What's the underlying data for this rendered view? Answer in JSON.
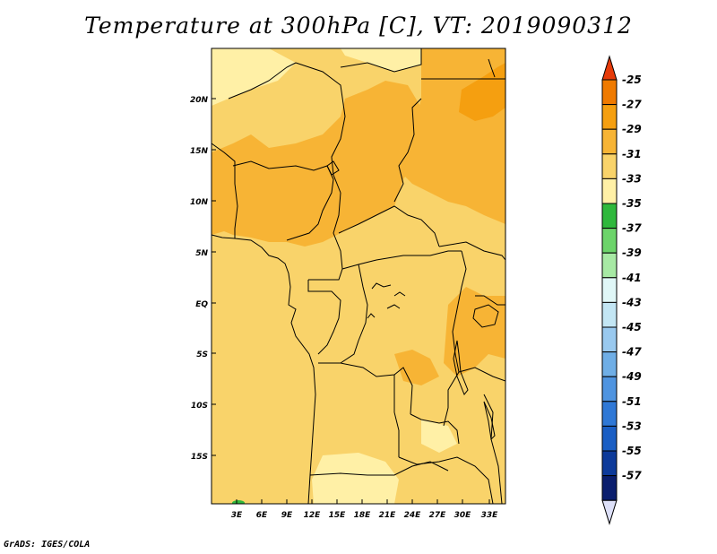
{
  "title": "Temperature at 300hPa [C], VT: 2019090312",
  "footer": "GrADS: IGES/COLA",
  "map": {
    "lat_ticks": [
      "20N",
      "15N",
      "10N",
      "5N",
      "EQ",
      "5S",
      "10S",
      "15S"
    ],
    "lon_ticks": [
      "3E",
      "6E",
      "9E",
      "12E",
      "15E",
      "18E",
      "21E",
      "24E",
      "27E",
      "30E",
      "33E"
    ]
  },
  "colorbar": {
    "labels": [
      "-25",
      "-27",
      "-29",
      "-31",
      "-33",
      "-35",
      "-37",
      "-39",
      "-41",
      "-43",
      "-45",
      "-47",
      "-49",
      "-51",
      "-53",
      "-55",
      "-57"
    ],
    "colors": [
      "#e64a0a",
      "#ef7a00",
      "#f59f10",
      "#f7b435",
      "#f9d36a",
      "#fff0a6",
      "#2fb83c",
      "#6cd46a",
      "#a7e9a4",
      "#e0f7f7",
      "#c3e6f4",
      "#99c9ef",
      "#6faee6",
      "#4f94e0",
      "#2f78d6",
      "#1a5ec4",
      "#0d3a9a",
      "#0a1e6e"
    ],
    "top_arrow_color": "#e63b0a",
    "bottom_arrow_color": "#dde0f8"
  },
  "field_colors": {
    "c33": "#f9d36a",
    "c31": "#f7b435",
    "c29": "#f59f10",
    "c35": "#fff0a6",
    "green": "#2fb83c"
  }
}
